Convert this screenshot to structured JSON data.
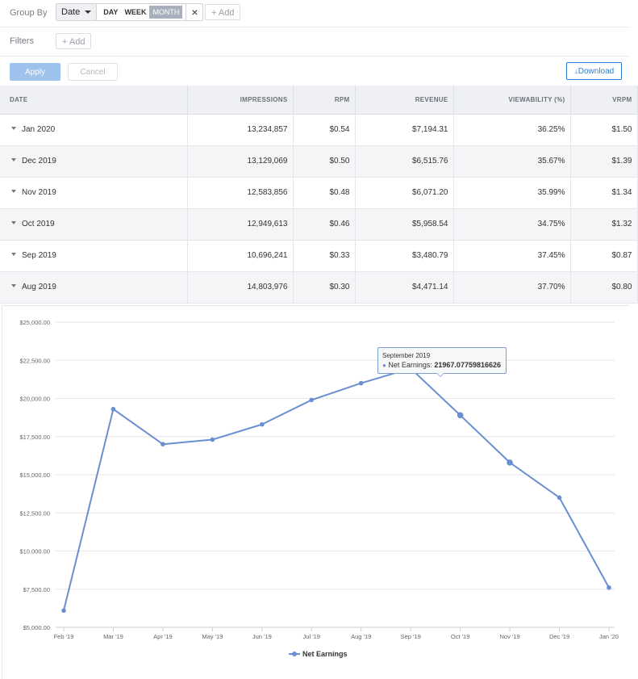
{
  "toolbar": {
    "group_by_label": "Group By",
    "group_field": "Date",
    "granularity_options": [
      "DAY",
      "WEEK",
      "MONTH"
    ],
    "granularity_selected": "MONTH",
    "clear_label": "×",
    "add_group_label": "+ Add",
    "filters_label": "Filters",
    "add_filter_label": "+ Add",
    "apply_label": "Apply",
    "cancel_label": "Cancel",
    "download_label": "↓Download"
  },
  "table": {
    "columns": [
      "DATE",
      "IMPRESSIONS",
      "RPM",
      "REVENUE",
      "VIEWABILITY (%)",
      "VRPM"
    ],
    "rows": [
      [
        "Jan 2020",
        "13,234,857",
        "$0.54",
        "$7,194.31",
        "36.25%",
        "$1.50"
      ],
      [
        "Dec 2019",
        "13,129,069",
        "$0.50",
        "$6,515.76",
        "35.67%",
        "$1.39"
      ],
      [
        "Nov 2019",
        "12,583,856",
        "$0.48",
        "$6,071.20",
        "35.99%",
        "$1.34"
      ],
      [
        "Oct 2019",
        "12,949,613",
        "$0.46",
        "$5,958.54",
        "34.75%",
        "$1.32"
      ],
      [
        "Sep 2019",
        "10,696,241",
        "$0.33",
        "$3,480.79",
        "37.45%",
        "$0.87"
      ],
      [
        "Aug 2019",
        "14,803,976",
        "$0.30",
        "$4,471.14",
        "37.70%",
        "$0.80"
      ]
    ]
  },
  "chart_data": {
    "type": "line",
    "categories": [
      "Feb '19",
      "Mar '19",
      "Apr '19",
      "May '19",
      "Jun '19",
      "Jul '19",
      "Aug '19",
      "Sep '19",
      "Oct '19",
      "Nov '19",
      "Dec '19",
      "Jan '20"
    ],
    "series": [
      {
        "name": "Net Earnings",
        "values": [
          6100,
          19300,
          17000,
          17300,
          18300,
          19900,
          21000,
          21967.08,
          18900,
          15800,
          13500,
          7600
        ]
      }
    ],
    "ylim": [
      5000,
      25000
    ],
    "yticks": [
      5000,
      7500,
      10000,
      12500,
      15000,
      17500,
      20000,
      22500,
      25000
    ],
    "ytick_labels": [
      "$5,000.00",
      "$7,500.00",
      "$10,000.00",
      "$12,500.00",
      "$15,000.00",
      "$17,500.00",
      "$20,000.00",
      "$22,500.00",
      "$25,000.00"
    ],
    "grid": true,
    "legend": "bottom",
    "color": "#6a8fd1",
    "tooltip": {
      "title": "September 2019",
      "series_label": "Net Earnings:",
      "value": "21967.07759816626"
    }
  }
}
